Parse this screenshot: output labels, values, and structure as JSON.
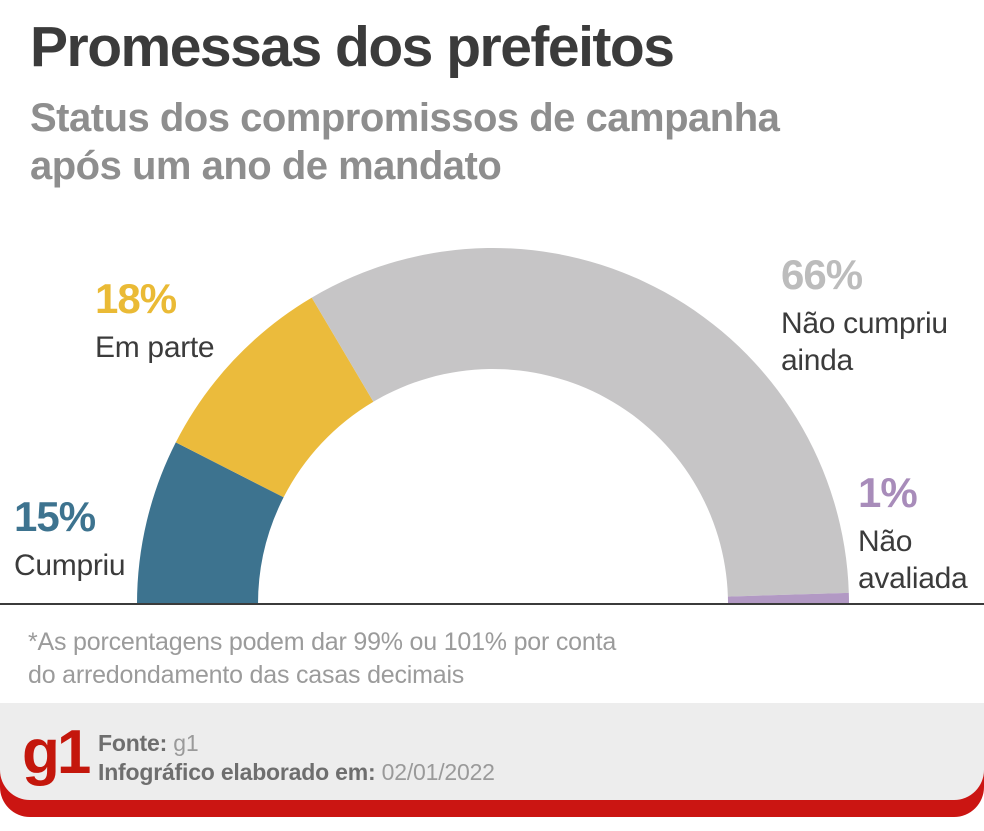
{
  "header": {
    "title": "Promessas dos prefeitos",
    "subtitle_lines": [
      "Status dos compromissos de campanha",
      "após um ano de mandato"
    ]
  },
  "chart_data": {
    "type": "pie",
    "variant": "half-donut",
    "title": "Promessas dos prefeitos",
    "subtitle": "Status dos compromissos de campanha após um ano de mandato",
    "unit": "%",
    "start_angle_deg": 180,
    "end_angle_deg": 0,
    "legend_position": "around-arc",
    "slices": [
      {
        "label": "Cumpriu",
        "value": 15,
        "color": "#3d738f",
        "value_color": "#3d738f"
      },
      {
        "label": "Em parte",
        "value": 18,
        "color": "#ebbb3c",
        "value_color": "#eaba35"
      },
      {
        "label": "Não cumpriu ainda",
        "value": 66,
        "color": "#c6c5c6",
        "value_color": "#bcbcbc"
      },
      {
        "label": "Não avaliada",
        "value": 1,
        "color": "#b299c4",
        "value_color": "#a88cba"
      }
    ]
  },
  "footnote": {
    "lines": [
      "*As porcentagens podem dar 99% ou 101% por conta",
      "do arredondamento das casas decimais"
    ]
  },
  "footer": {
    "logo": "g1",
    "source_label": "Fonte:",
    "source_value": "g1",
    "date_label": "Infográfico elaborado em:",
    "date_value": "02/01/2022"
  },
  "colors": {
    "title_text": "#3b3b3b",
    "subtitle_text": "#8e8e8e",
    "label_dark": "#3b3b3b",
    "baseline": "#3b3b3b",
    "footnote_text": "#9b9b9b",
    "footer_bg": "#ededed",
    "footer_bold_text": "#6e6e6e",
    "footer_value_text": "#9a9a9a",
    "logo_red": "#c4170c",
    "bar_red": "#cb1512"
  }
}
